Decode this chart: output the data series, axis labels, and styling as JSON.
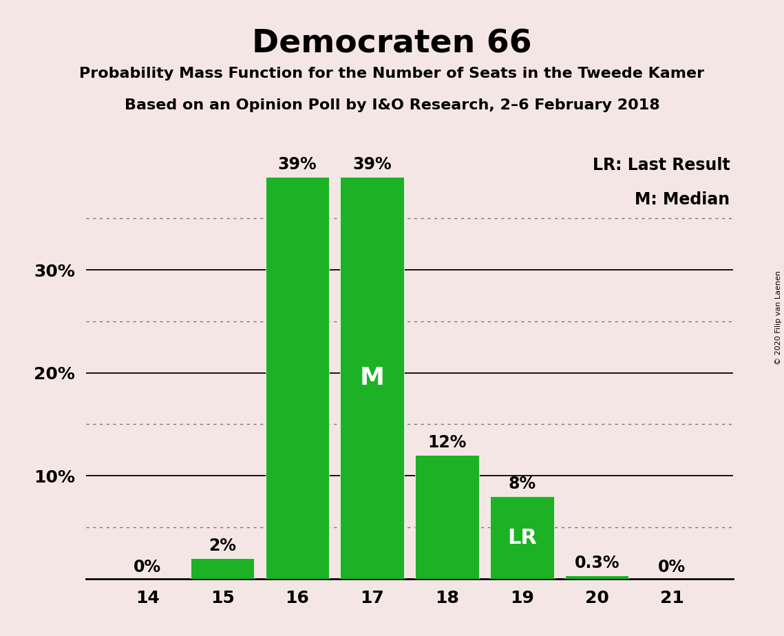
{
  "title": "Democraten 66",
  "subtitle1": "Probability Mass Function for the Number of Seats in the Tweede Kamer",
  "subtitle2": "Based on an Opinion Poll by I&O Research, 2–6 February 2018",
  "categories": [
    14,
    15,
    16,
    17,
    18,
    19,
    20,
    21
  ],
  "values": [
    0.0,
    2.0,
    39.0,
    39.0,
    12.0,
    8.0,
    0.3,
    0.0
  ],
  "bar_color": "#1db225",
  "background_color": "#f5e6e6",
  "bar_labels": [
    "0%",
    "2%",
    "39%",
    "39%",
    "12%",
    "8%",
    "0.3%",
    "0%"
  ],
  "median_bar": 17,
  "last_result_bar": 19,
  "legend_lr": "LR: Last Result",
  "legend_m": "M: Median",
  "copyright_text": "© 2020 Filip van Laenen",
  "solid_yticks": [
    10,
    20,
    30
  ],
  "dotted_yticks": [
    5,
    15,
    25,
    35
  ],
  "ytick_labels": [
    "10%",
    "20%",
    "30%"
  ],
  "ylim": [
    0,
    42
  ],
  "bar_label_fontsize": 17,
  "axis_tick_fontsize": 18,
  "title_fontsize": 34,
  "subtitle_fontsize": 16,
  "legend_fontsize": 17,
  "inside_label_fontsize_M": 26,
  "inside_label_fontsize_LR": 22
}
